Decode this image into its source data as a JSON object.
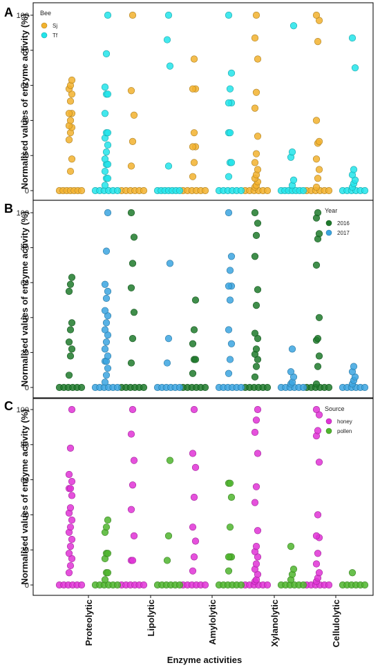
{
  "x_axis_title": "Enzyme activities",
  "categories": [
    "Proteolytic",
    "Lipolytic",
    "Amylolytic",
    "Xylanolytic",
    "Cellulolytic"
  ],
  "chart_data": [
    {
      "type": "scatter",
      "panel": "A",
      "ylabel": "Normalised values of enzyme activity (%)",
      "ylim": [
        0,
        100
      ],
      "yticks": [
        0,
        20,
        40,
        60,
        80,
        100
      ],
      "legend": {
        "title": "Bee",
        "placement": "top-left"
      },
      "series": [
        {
          "name": "Sj",
          "color": "#f2b22e",
          "values": [
            [
              0,
              0,
              0,
              0,
              0,
              0,
              0,
              11,
              18,
              29,
              33,
              36,
              37,
              40,
              44,
              44,
              51,
              55,
              58,
              60,
              63
            ],
            [
              0,
              0,
              0,
              0,
              0,
              0,
              14,
              28,
              43,
              57,
              100
            ],
            [
              0,
              0,
              0,
              0,
              0,
              0,
              8,
              16,
              25,
              25,
              33,
              58,
              58,
              75
            ],
            [
              0,
              0,
              0,
              0,
              0,
              0,
              2,
              3,
              5,
              7,
              9,
              12,
              16,
              21,
              31,
              47,
              56,
              75,
              87,
              100
            ],
            [
              0,
              0,
              0,
              0,
              0,
              0,
              2,
              7,
              12,
              18,
              27,
              28,
              40,
              85,
              97,
              100
            ]
          ]
        },
        {
          "name": "Tf",
          "color": "#22e4ea",
          "values": [
            [
              0,
              0,
              0,
              0,
              0,
              0,
              3,
              7,
              7,
              11,
              15,
              15,
              18,
              22,
              26,
              30,
              33,
              33,
              44,
              55,
              55,
              59,
              78,
              100
            ],
            [
              0,
              0,
              0,
              0,
              0,
              0,
              0,
              14,
              71,
              86,
              100
            ],
            [
              0,
              0,
              0,
              0,
              0,
              0,
              8,
              16,
              16,
              33,
              33,
              50,
              50,
              58,
              67,
              100
            ],
            [
              0,
              0,
              0,
              0,
              0,
              0,
              0,
              3,
              6,
              19,
              22,
              94
            ],
            [
              0,
              0,
              0,
              0,
              0,
              0,
              2,
              4,
              6,
              9,
              12,
              70,
              87
            ]
          ]
        }
      ]
    },
    {
      "type": "scatter",
      "panel": "B",
      "ylabel": "Normalised values of enzyme activity (%)",
      "ylim": [
        0,
        100
      ],
      "yticks": [
        0,
        20,
        40,
        60,
        80,
        100
      ],
      "legend": {
        "title": "Year",
        "placement": "top-right"
      },
      "series": [
        {
          "name": "2016",
          "color": "#1e7a2c",
          "values": [
            [
              0,
              0,
              0,
              0,
              0,
              0,
              7,
              18,
              22,
              26,
              33,
              37,
              55,
              59,
              63
            ],
            [
              0,
              0,
              0,
              0,
              0,
              0,
              14,
              28,
              43,
              57,
              71,
              86,
              100
            ],
            [
              0,
              0,
              0,
              0,
              0,
              0,
              8,
              16,
              16,
              25,
              33,
              50
            ],
            [
              0,
              0,
              0,
              0,
              0,
              0,
              6,
              12,
              16,
              19,
              22,
              28,
              31,
              47,
              56,
              75,
              87,
              94,
              100
            ],
            [
              0,
              0,
              0,
              0,
              0,
              0,
              2,
              12,
              18,
              27,
              28,
              40,
              70,
              85,
              88,
              97,
              100
            ]
          ]
        },
        {
          "name": "2017",
          "color": "#3ba5e0",
          "values": [
            [
              0,
              0,
              0,
              0,
              0,
              0,
              3,
              7,
              11,
              15,
              15,
              18,
              22,
              26,
              30,
              33,
              37,
              41,
              44,
              51,
              55,
              59,
              78,
              100
            ],
            [
              0,
              0,
              0,
              0,
              0,
              0,
              14,
              28,
              71
            ],
            [
              0,
              0,
              0,
              0,
              0,
              0,
              8,
              16,
              25,
              33,
              50,
              58,
              58,
              67,
              75,
              100
            ],
            [
              0,
              0,
              0,
              0,
              0,
              0,
              2,
              3,
              6,
              9,
              22
            ],
            [
              0,
              0,
              0,
              0,
              0,
              0,
              2,
              4,
              6,
              9,
              12
            ]
          ]
        }
      ]
    },
    {
      "type": "scatter",
      "panel": "C",
      "ylabel": "Normalised values of enzyme activity (%)",
      "ylim": [
        0,
        100
      ],
      "yticks": [
        0,
        20,
        40,
        60,
        80,
        100
      ],
      "legend": {
        "title": "Source",
        "placement": "top-right"
      },
      "series": [
        {
          "name": "honey",
          "color": "#e033d6",
          "values": [
            [
              0,
              0,
              0,
              0,
              0,
              0,
              7,
              11,
              15,
              18,
              22,
              26,
              30,
              33,
              37,
              41,
              44,
              51,
              55,
              55,
              59,
              63,
              78,
              100
            ],
            [
              0,
              0,
              0,
              0,
              0,
              0,
              14,
              14,
              28,
              43,
              57,
              71,
              86,
              100
            ],
            [
              0,
              0,
              0,
              0,
              0,
              0,
              8,
              16,
              25,
              33,
              50,
              67,
              75,
              100
            ],
            [
              0,
              0,
              0,
              0,
              0,
              0,
              2,
              3,
              6,
              9,
              12,
              16,
              19,
              22,
              31,
              47,
              56,
              75,
              87,
              94,
              100
            ],
            [
              0,
              0,
              0,
              0,
              0,
              0,
              2,
              4,
              7,
              12,
              18,
              27,
              28,
              40,
              70,
              85,
              88,
              97,
              100
            ]
          ]
        },
        {
          "name": "pollen",
          "color": "#4fb52e",
          "values": [
            [
              0,
              0,
              0,
              0,
              0,
              0,
              3,
              7,
              7,
              15,
              18,
              18,
              30,
              33,
              37
            ],
            [
              0,
              0,
              0,
              0,
              0,
              0,
              14,
              28,
              71
            ],
            [
              0,
              0,
              0,
              0,
              0,
              0,
              8,
              16,
              16,
              16,
              33,
              50,
              58,
              58
            ],
            [
              0,
              0,
              0,
              0,
              0,
              0,
              3,
              6,
              9,
              22
            ],
            [
              0,
              0,
              0,
              0,
              0,
              0,
              7
            ]
          ]
        }
      ]
    }
  ]
}
